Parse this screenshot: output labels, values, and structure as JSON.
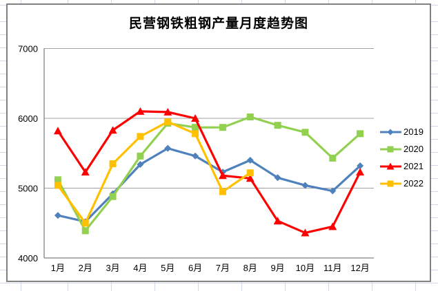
{
  "chart_data": {
    "type": "line",
    "title": "民营钢铁粗钢产量月度趋势图",
    "categories": [
      "1月",
      "2月",
      "3月",
      "4月",
      "5月",
      "6月",
      "7月",
      "8月",
      "9月",
      "10月",
      "11月",
      "12月"
    ],
    "yticks": [
      4000,
      5000,
      6000,
      7000
    ],
    "ylim": [
      4000,
      7000
    ],
    "grid": true,
    "legend_position": "right",
    "series": [
      {
        "name": "2019",
        "color": "#4F81BD",
        "marker": "diamond",
        "values": [
          4610,
          4520,
          4920,
          5340,
          5570,
          5460,
          5230,
          5400,
          5150,
          5040,
          4960,
          5320
        ]
      },
      {
        "name": "2020",
        "color": "#92D050",
        "marker": "square",
        "values": [
          5120,
          4390,
          4880,
          5460,
          5930,
          5870,
          5870,
          6020,
          5900,
          5800,
          5430,
          5780
        ]
      },
      {
        "name": "2021",
        "color": "#FF0000",
        "marker": "triangle",
        "values": [
          5820,
          5230,
          5830,
          6100,
          6090,
          6000,
          5180,
          5140,
          4530,
          4360,
          4450,
          5230
        ]
      },
      {
        "name": "2022",
        "color": "#FFC000",
        "marker": "square",
        "values": [
          5040,
          4500,
          5350,
          5740,
          5950,
          5780,
          4950,
          5220,
          null,
          null,
          null,
          null
        ]
      }
    ],
    "colors": {
      "gridline": "#a0a0a0",
      "axis": "#808080",
      "chart_border": "#808080"
    }
  }
}
